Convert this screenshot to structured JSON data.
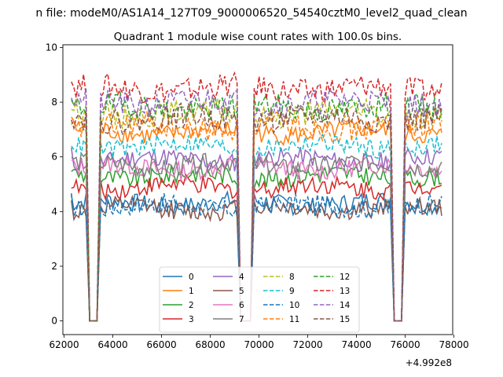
{
  "suptitle": "n file: modeM0/AS1A14_127T09_9000006520_54540cztM0_level2_quad_clean",
  "chart_data": {
    "type": "line",
    "title": "Quadrant 1 module wise count rates with 100.0s bins.",
    "xlabel": "",
    "ylabel": "",
    "x_offset_label": "+4.992e8",
    "xlim": [
      61950,
      77950
    ],
    "ylim": [
      -0.5,
      10.1
    ],
    "x_ticks": [
      62000,
      64000,
      66000,
      68000,
      70000,
      72000,
      74000,
      76000,
      78000
    ],
    "x_tick_labels": [
      "62000",
      "64000",
      "66000",
      "68000",
      "70000",
      "72000",
      "74000",
      "76000",
      "78000"
    ],
    "y_ticks": [
      0,
      2,
      4,
      6,
      8,
      10
    ],
    "y_tick_labels": [
      "0",
      "2",
      "4",
      "6",
      "8",
      "10"
    ],
    "grid": false,
    "legend_position": "lower center",
    "legend_ncol": 4,
    "segments": [
      [
        62300,
        62900
      ],
      [
        63500,
        69100
      ],
      [
        69800,
        75400
      ],
      [
        76000,
        77500
      ]
    ],
    "gap_level": 0,
    "series": [
      {
        "name": "0",
        "color": "#1f77b4",
        "dash": "solid",
        "level": 4.3
      },
      {
        "name": "1",
        "color": "#ff7f0e",
        "dash": "solid",
        "level": 6.9
      },
      {
        "name": "2",
        "color": "#2ca02c",
        "dash": "solid",
        "level": 5.3
      },
      {
        "name": "3",
        "color": "#d62728",
        "dash": "solid",
        "level": 4.9
      },
      {
        "name": "4",
        "color": "#9467bd",
        "dash": "solid",
        "level": 5.9
      },
      {
        "name": "5",
        "color": "#8c564b",
        "dash": "solid",
        "level": 4.1
      },
      {
        "name": "6",
        "color": "#e377c2",
        "dash": "solid",
        "level": 5.6
      },
      {
        "name": "7",
        "color": "#7f7f7f",
        "dash": "solid",
        "level": 5.7
      },
      {
        "name": "8",
        "color": "#bcbd22",
        "dash": "dashed",
        "level": 7.6
      },
      {
        "name": "9",
        "color": "#17becf",
        "dash": "dashed",
        "level": 6.4
      },
      {
        "name": "10",
        "color": "#1f77b4",
        "dash": "dashed",
        "level": 4.2
      },
      {
        "name": "11",
        "color": "#ff7f0e",
        "dash": "dashed",
        "level": 7.1
      },
      {
        "name": "12",
        "color": "#2ca02c",
        "dash": "dashed",
        "level": 7.8
      },
      {
        "name": "13",
        "color": "#d62728",
        "dash": "dashed",
        "level": 8.5
      },
      {
        "name": "14",
        "color": "#9467bd",
        "dash": "dashed",
        "level": 8.0
      },
      {
        "name": "15",
        "color": "#8c564b",
        "dash": "dashed",
        "level": 7.4
      }
    ]
  }
}
